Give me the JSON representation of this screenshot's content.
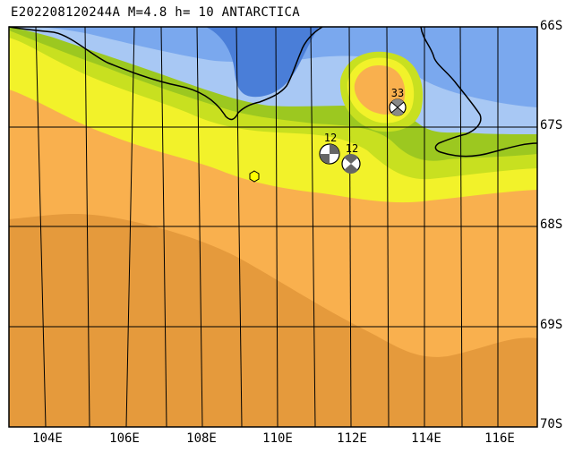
{
  "header": {
    "title": "E202208120244A M=4.8 h= 10 ANTARCTICA"
  },
  "axes": {
    "lat_labels": [
      "66S",
      "67S",
      "68S",
      "69S",
      "70S"
    ],
    "lon_labels": [
      "104E",
      "106E",
      "108E",
      "110E",
      "112E",
      "114E",
      "116E"
    ]
  },
  "mechanisms": [
    {
      "label": "33"
    },
    {
      "label": "12"
    },
    {
      "label": "12"
    }
  ],
  "colors": {
    "ocean_deep": "#4a7ed8",
    "ocean_mid": "#7aa8ee",
    "ocean_light": "#a8c8f4",
    "yellow": "#f2f22a",
    "yellow_green": "#c8e020",
    "green": "#9cc820",
    "light_orange": "#f9b04e",
    "dark_orange": "#e59a3c",
    "epicenter": "#ffff00"
  }
}
